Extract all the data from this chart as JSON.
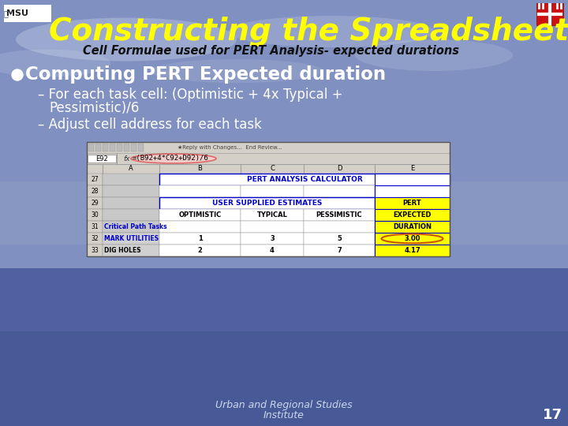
{
  "title": "Constructing the Spreadsheet",
  "subtitle": "Cell Formulae used for PERT Analysis- expected durations",
  "bullet_header": "Computing PERT Expected duration",
  "sub_bullet1a": "– For each task cell: (Optimistic + 4x Typical +",
  "sub_bullet1b": "    Pessimistic)/6",
  "sub_bullet2": "– Adjust cell address for each task",
  "footer_line1": "Urban and Regional Studies",
  "footer_line2": "Institute",
  "page_num": "17",
  "title_color": "#ffff00",
  "subtitle_color": "#111111",
  "text_color": "#ffffff",
  "toolbar_text": "★Reply with Changes...  End Review...",
  "cell_ref": "E92",
  "formula": "=(B92+4*C92+D92)/6",
  "bg_top": "#7080b8",
  "bg_bottom": "#4a6090",
  "cloud_color": "#c0ccdd"
}
